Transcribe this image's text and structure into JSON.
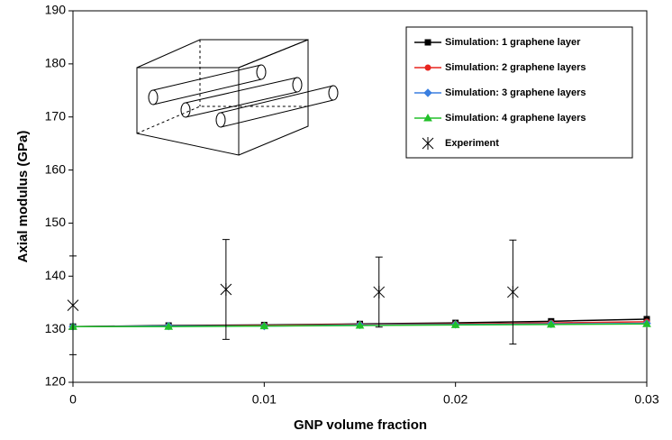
{
  "chart_data": {
    "type": "line",
    "x_label": "GNP volume fraction",
    "y_label": "Axial modulus (GPa)",
    "x": [
      0,
      0.005,
      0.01,
      0.015,
      0.02,
      0.025,
      0.03
    ],
    "series": [
      {
        "name": "Simulation: 1 graphene layer",
        "color": "#000000",
        "marker": "square",
        "values": [
          130.5,
          130.7,
          130.8,
          131.0,
          131.2,
          131.5,
          131.9
        ]
      },
      {
        "name": "Simulation: 2 graphene layers",
        "color": "#e8251f",
        "marker": "circle",
        "values": [
          130.5,
          130.6,
          130.7,
          130.9,
          131.0,
          131.2,
          131.4
        ]
      },
      {
        "name": "Simulation: 3 graphene layers",
        "color": "#3a7fe0",
        "marker": "diamond",
        "values": [
          130.5,
          130.6,
          130.6,
          130.8,
          130.9,
          131.0,
          131.1
        ]
      },
      {
        "name": "Simulation: 4 graphene layers",
        "color": "#22c02a",
        "marker": "triangle",
        "values": [
          130.5,
          130.5,
          130.6,
          130.7,
          130.8,
          130.9,
          131.0
        ]
      }
    ],
    "experiment": {
      "name": "Experiment",
      "color": "#000000",
      "marker": "star",
      "x": [
        0,
        0.008,
        0.016,
        0.023
      ],
      "values": [
        134.5,
        137.5,
        137.0,
        137.0
      ],
      "errors": [
        9.3,
        9.4,
        6.6,
        9.8
      ]
    },
    "xlim": [
      0,
      0.03
    ],
    "xticks": [
      0,
      0.01,
      0.02,
      0.03
    ],
    "ylim": [
      120,
      190
    ],
    "yticks": [
      120,
      130,
      140,
      150,
      160,
      170,
      180,
      190
    ],
    "legend": "top-right"
  }
}
